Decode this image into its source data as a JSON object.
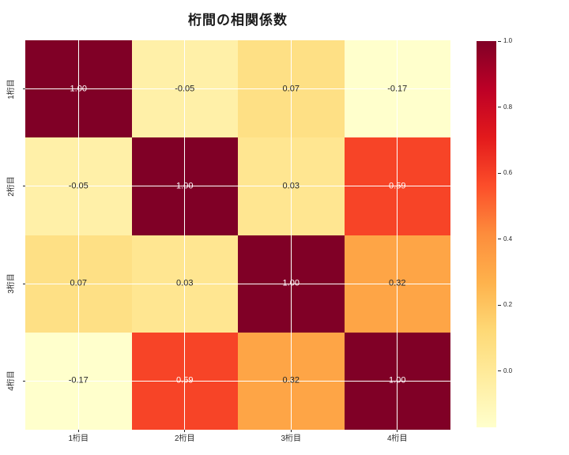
{
  "title": "桁間の相関係数",
  "chart_data": {
    "type": "heatmap",
    "title": "桁間の相関係数",
    "categories": [
      "1桁目",
      "2桁目",
      "3桁目",
      "4桁目"
    ],
    "matrix": [
      [
        1.0,
        -0.05,
        0.07,
        -0.17
      ],
      [
        -0.05,
        1.0,
        0.03,
        0.59
      ],
      [
        0.07,
        0.03,
        1.0,
        0.32
      ],
      [
        -0.17,
        0.59,
        0.32,
        1.0
      ]
    ],
    "cell_labels": [
      [
        "1.00",
        "-0.05",
        "0.07",
        "-0.17"
      ],
      [
        "-0.05",
        "1.00",
        "0.03",
        "0.59"
      ],
      [
        "0.07",
        "0.03",
        "1.00",
        "0.32"
      ],
      [
        "-0.17",
        "0.59",
        "0.32",
        "1.00"
      ]
    ],
    "vmin": -0.17,
    "vmax": 1.0,
    "grid": true,
    "gridline_color": "#ffffff",
    "legend_position": "right-colorbar",
    "colormap": {
      "name": "YlOrRd",
      "stops": [
        "#ffffcc",
        "#ffeda0",
        "#fed976",
        "#feb24c",
        "#fd8d3c",
        "#fc4e2a",
        "#e31a1c",
        "#bd0026",
        "#800026"
      ]
    },
    "colorbar_ticks": [
      "1.0",
      "0.8",
      "0.6",
      "0.4",
      "0.2",
      "0.0"
    ],
    "annotation_color_dark": "#262626",
    "annotation_color_light": "#ffffff",
    "axis_tick_color": "#262626",
    "background_color": "#ffffff"
  }
}
